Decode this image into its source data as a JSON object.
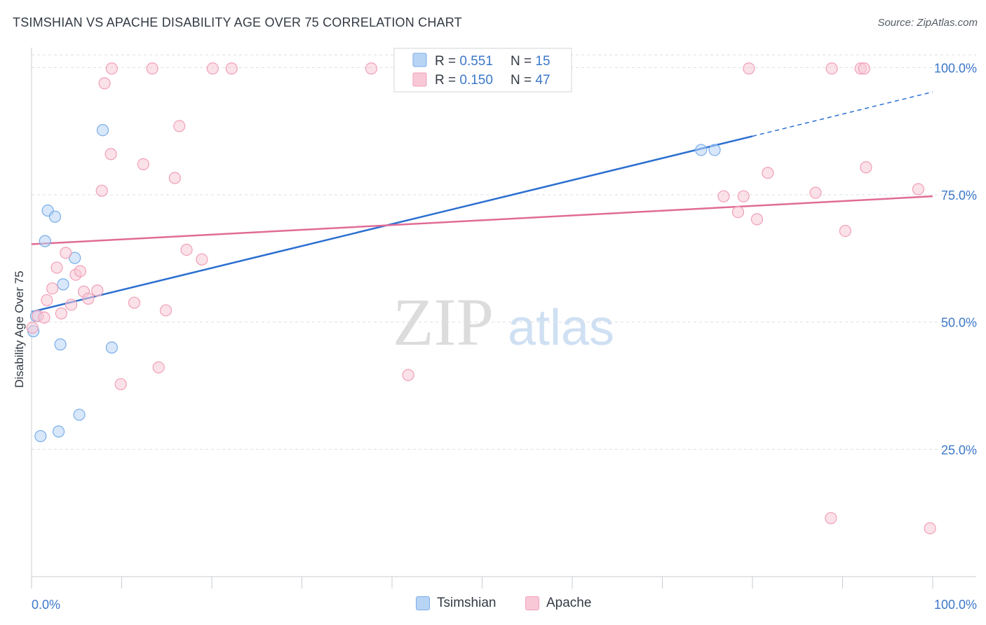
{
  "header": {
    "title": "TSIMSHIAN VS APACHE DISABILITY AGE OVER 75 CORRELATION CHART",
    "source": "Source: ZipAtlas.com"
  },
  "watermark": {
    "zip": "ZIP",
    "atlas": "atlas"
  },
  "colors": {
    "blue": "#7aaee8",
    "blue_fill": "#b8d4f5",
    "blue_line": "#2b6fd1",
    "pink": "#f0a0b8",
    "pink_fill": "#f8c8d6",
    "pink_line": "#e06c96",
    "axis_label": "#3c78c8"
  },
  "legend": {
    "rows": [
      {
        "r_label": "R = ",
        "r_value": "0.551",
        "n_label": "N = ",
        "n_value": "15"
      },
      {
        "r_label": "R = ",
        "r_value": "0.150",
        "n_label": "N = ",
        "n_value": "47"
      }
    ]
  },
  "chart_data": {
    "type": "scatter",
    "title": "TSIMSHIAN VS APACHE DISABILITY AGE OVER 75 CORRELATION CHART",
    "xlabel": "",
    "ylabel": "Disability Age Over 75",
    "xlim": [
      0,
      100
    ],
    "ylim": [
      0,
      105
    ],
    "x_tick_labels": [
      "0.0%",
      "100.0%"
    ],
    "y_ticks": [
      25,
      50,
      75,
      100
    ],
    "y_tick_labels": [
      "25.0%",
      "50.0%",
      "75.0%",
      "100.0%"
    ],
    "grid": true,
    "legend_position": "top-center",
    "series": [
      {
        "name": "Tsimshian",
        "color": "#7aaee8",
        "points": [
          [
            0.2,
            48.2
          ],
          [
            0.5,
            51.2
          ],
          [
            1.0,
            27.6
          ],
          [
            1.5,
            65.9
          ],
          [
            1.8,
            71.9
          ],
          [
            2.6,
            70.7
          ],
          [
            3.0,
            28.5
          ],
          [
            3.2,
            45.6
          ],
          [
            3.5,
            57.4
          ],
          [
            4.8,
            62.6
          ],
          [
            5.3,
            31.8
          ],
          [
            7.9,
            87.7
          ],
          [
            8.9,
            45.0
          ],
          [
            74.3,
            83.8
          ],
          [
            75.8,
            83.8
          ]
        ],
        "trend": {
          "x": [
            0,
            80
          ],
          "y": [
            52.0,
            86.5
          ],
          "dashed_to": [
            100,
            95.2
          ]
        }
      },
      {
        "name": "Apache",
        "color": "#f0a0b8",
        "points": [
          [
            0.1,
            48.9
          ],
          [
            0.7,
            51.2
          ],
          [
            1.4,
            50.9
          ],
          [
            1.7,
            54.3
          ],
          [
            2.3,
            56.6
          ],
          [
            2.8,
            60.7
          ],
          [
            3.3,
            51.7
          ],
          [
            3.8,
            63.6
          ],
          [
            4.4,
            53.4
          ],
          [
            4.9,
            59.3
          ],
          [
            5.4,
            60.0
          ],
          [
            5.8,
            56.0
          ],
          [
            6.3,
            54.6
          ],
          [
            7.3,
            56.2
          ],
          [
            7.8,
            75.8
          ],
          [
            8.1,
            96.9
          ],
          [
            8.8,
            83.0
          ],
          [
            8.9,
            99.8
          ],
          [
            9.9,
            37.8
          ],
          [
            11.4,
            53.8
          ],
          [
            12.4,
            81.0
          ],
          [
            13.4,
            99.8
          ],
          [
            14.1,
            41.1
          ],
          [
            14.9,
            52.3
          ],
          [
            15.9,
            78.3
          ],
          [
            16.4,
            88.5
          ],
          [
            17.2,
            64.2
          ],
          [
            18.9,
            62.3
          ],
          [
            20.1,
            99.8
          ],
          [
            22.2,
            99.8
          ],
          [
            37.7,
            99.8
          ],
          [
            41.8,
            39.6
          ],
          [
            76.8,
            74.7
          ],
          [
            78.4,
            71.6
          ],
          [
            79.0,
            74.7
          ],
          [
            79.6,
            99.8
          ],
          [
            80.5,
            70.2
          ],
          [
            81.7,
            79.3
          ],
          [
            87.0,
            75.4
          ],
          [
            88.7,
            11.5
          ],
          [
            88.8,
            99.8
          ],
          [
            90.3,
            67.9
          ],
          [
            92.0,
            99.8
          ],
          [
            92.4,
            99.8
          ],
          [
            92.6,
            80.4
          ],
          [
            98.4,
            76.1
          ],
          [
            99.7,
            9.5
          ]
        ],
        "trend": {
          "x": [
            0,
            100
          ],
          "y": [
            65.3,
            74.7
          ]
        }
      }
    ]
  },
  "legend_bottom": {
    "items": [
      {
        "label": "Tsimshian"
      },
      {
        "label": "Apache"
      }
    ]
  }
}
